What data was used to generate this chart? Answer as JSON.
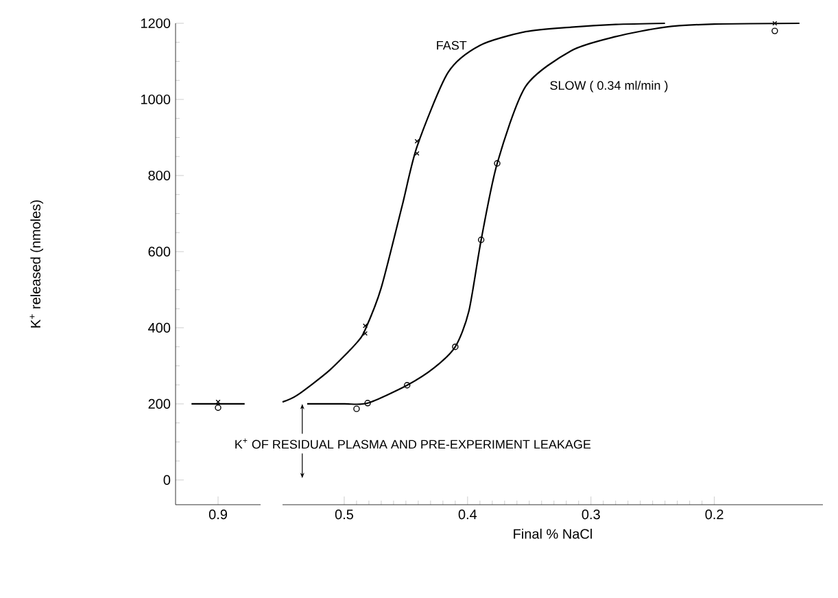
{
  "chart_data": [
    {
      "type": "line",
      "ylabel": "K$^{+}$ released (nmoles)",
      "categories": [
        null,
        "0.9",
        null
      ],
      "ylim": [
        -65,
        1200
      ],
      "yticks": [
        0,
        200,
        400,
        600,
        800,
        1000,
        1200
      ],
      "series": [
        {
          "color": "#000000",
          "values": [
            200,
            200,
            200
          ]
        },
        {
          "type": "scatter",
          "marker": "cross",
          "color": "#000000",
          "values": [
            null,
            205,
            null
          ]
        },
        {
          "type": "scatter",
          "marker": "circle",
          "color": "#000000",
          "values": [
            null,
            190,
            null
          ]
        }
      ]
    },
    {
      "type": "line",
      "xlabel": "Final % NaCl",
      "xlim": [
        0.55,
        0.112
      ],
      "xticks": [
        0.5,
        0.4,
        0.3,
        0.2
      ],
      "ylim": [
        -65,
        1200
      ],
      "tick_labels": "x",
      "annotations": [
        {
          "text": "K$^{+}$ OF RESIDUAL PLASMA AND PRE-EXPERIMENT LEAKAGE",
          "x": 0.534,
          "y": 200
        }
      ],
      "series": [
        {
          "name": "FAST",
          "color": "#000000",
          "x": [
            0.55,
            0.538,
            0.512,
            0.49,
            0.483,
            0.47,
            0.453,
            0.441,
            0.416,
            0.39,
            0.353,
            0.316,
            0.28,
            0.24
          ],
          "values": [
            205,
            223,
            288,
            360,
            395,
            505,
            721,
            876,
            1070,
            1142,
            1178,
            1190,
            1197,
            1200
          ]
        },
        {
          "name": "SLOW ( 0.34 ml/min )",
          "color": "#000000",
          "x": [
            0.53,
            0.5,
            0.481,
            0.449,
            0.427,
            0.41,
            0.399,
            0.389,
            0.376,
            0.353,
            0.316,
            0.28,
            0.24,
            0.2,
            0.131
          ],
          "values": [
            200,
            200,
            202,
            249,
            295,
            350,
            443,
            631,
            832,
            1034,
            1128,
            1165,
            1190,
            1198,
            1200
          ]
        },
        {
          "type": "scatter",
          "marker": "cross",
          "color": "#000000",
          "x": [
            0.483,
            0.483,
            0.441,
            0.441,
            0.151
          ],
          "values": [
            405,
            385,
            890,
            858,
            1200
          ]
        },
        {
          "type": "scatter",
          "marker": "circle",
          "color": "#000000",
          "x": [
            0.49,
            0.481,
            0.449,
            0.41,
            0.389,
            0.376,
            0.151
          ],
          "values": [
            187,
            202,
            249,
            350,
            631,
            832,
            1180
          ]
        }
      ]
    }
  ]
}
